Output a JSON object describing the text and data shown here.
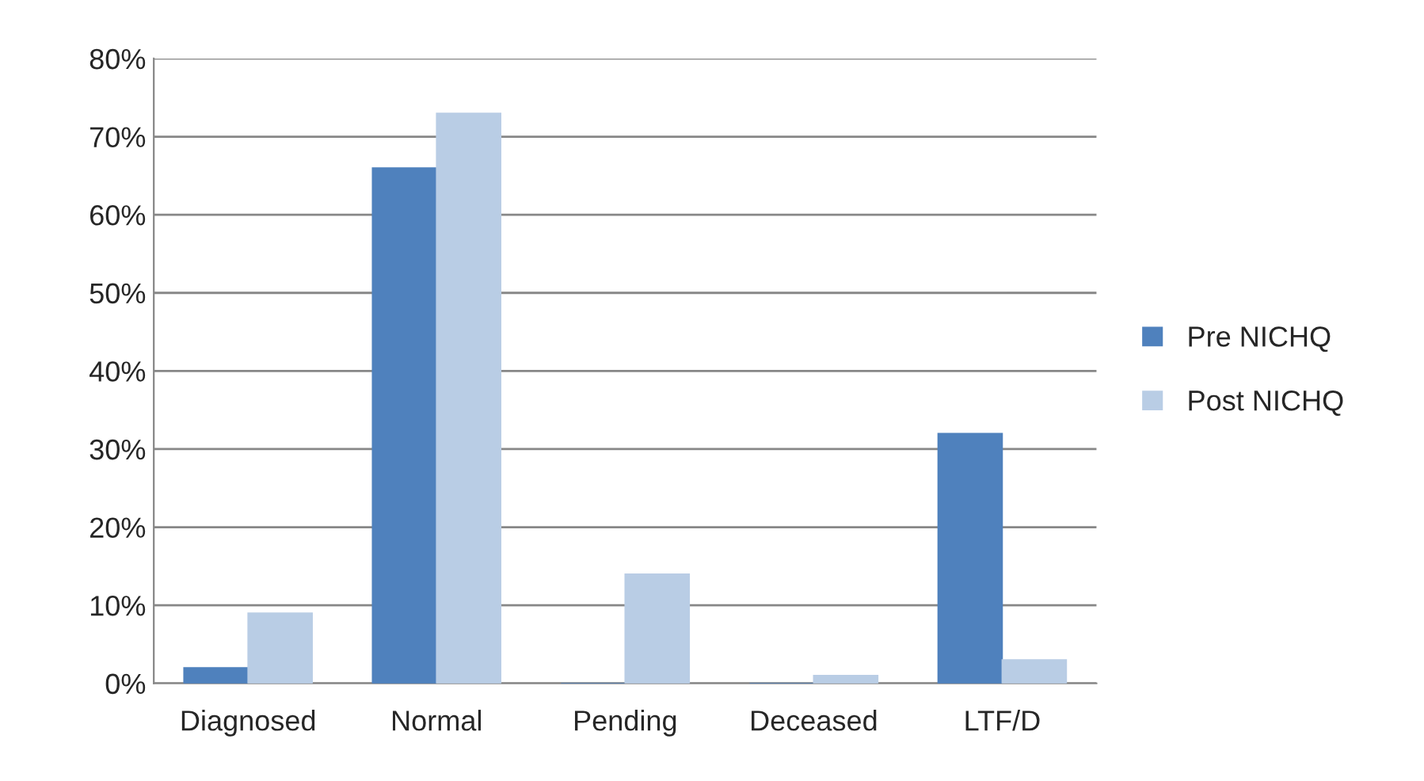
{
  "chart_data": {
    "type": "bar",
    "categories": [
      "Diagnosed",
      "Normal",
      "Pending",
      "Deceased",
      "LTF/D"
    ],
    "series": [
      {
        "name": "Pre NICHQ",
        "color": "#4f81bd",
        "values": [
          2,
          66,
          0,
          0,
          32
        ]
      },
      {
        "name": "Post NICHQ",
        "color": "#b9cde5",
        "values": [
          9,
          73,
          14,
          1,
          3
        ]
      }
    ],
    "ylim": [
      0,
      80
    ],
    "yticks": [
      {
        "value": 0,
        "label": "0%"
      },
      {
        "value": 10,
        "label": "10%"
      },
      {
        "value": 20,
        "label": "20%"
      },
      {
        "value": 30,
        "label": "30%"
      },
      {
        "value": 40,
        "label": "40%"
      },
      {
        "value": 50,
        "label": "50%"
      },
      {
        "value": 60,
        "label": "60%"
      },
      {
        "value": 70,
        "label": "70%"
      },
      {
        "value": 80,
        "label": "80%"
      }
    ],
    "grid": "y",
    "legend": "right"
  }
}
